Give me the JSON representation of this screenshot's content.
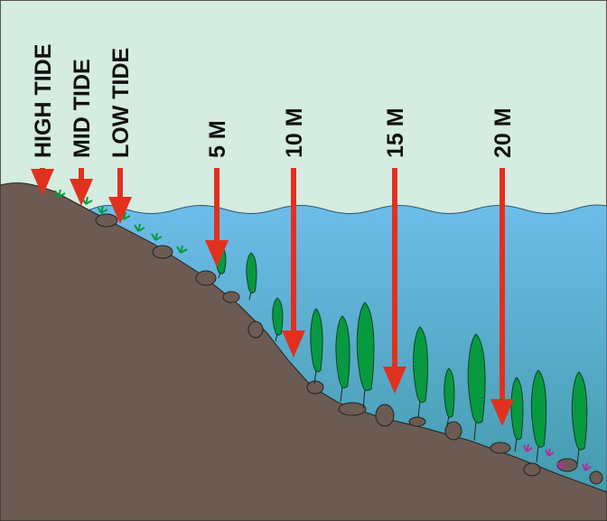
{
  "colors": {
    "sky": "#d5ece0",
    "water_top": "#6dbde9",
    "water_bottom": "#3f97a6",
    "ground": "#6b5b53",
    "arrow": "#e2301f",
    "kelp": "#07993f",
    "purple_weed": "#b0309a"
  },
  "labels": {
    "high_tide": "HIGH TIDE",
    "mid_tide": "MID TIDE",
    "low_tide": "LOW TIDE",
    "depth_5": "5 M",
    "depth_10": "10 M",
    "depth_15": "15 M",
    "depth_20": "20 M"
  },
  "icons": [
    "arrow-down-icon"
  ]
}
